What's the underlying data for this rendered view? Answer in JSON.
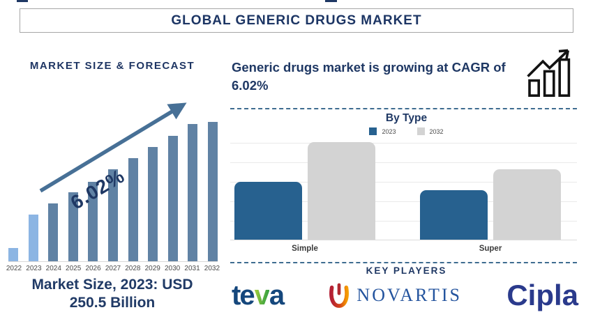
{
  "page": {
    "title": "GLOBAL GENERIC DRUGS MARKET"
  },
  "left_panel": {
    "heading": "MARKET SIZE & FORECAST",
    "growth_label": "6.02%",
    "caption": "Market Size, 2023: USD 250.5 Billion"
  },
  "right_panel": {
    "headline": "Generic drugs market is growing at CAGR of 6.02%",
    "by_type": {
      "title": "By Type"
    },
    "key_players": {
      "title": "KEY PLAYERS",
      "teva": {
        "prefix": "te",
        "leaf": "v",
        "suffix": "a"
      },
      "novartis": "NOVARTIS",
      "cipla": "Cipla"
    }
  },
  "colors": {
    "navy_text": "#1F3864",
    "forecast_bar": "#6082A4",
    "forecast_bar_highlight": "#8CB5E3",
    "arrow": "#477096",
    "bytype_2023": "#27618F",
    "bytype_2032": "#D3D3D3",
    "dashed_separator": "#3E6C90"
  },
  "chart_data": [
    {
      "type": "bar",
      "title": "MARKET SIZE & FORECAST",
      "categories": [
        "2022",
        "2023",
        "2024",
        "2025",
        "2026",
        "2027",
        "2028",
        "2029",
        "2030",
        "2031",
        "2032"
      ],
      "bar_heights_pct": [
        9.5,
        33.5,
        41.5,
        49.5,
        57,
        66,
        74,
        82,
        90,
        98.5,
        100
      ],
      "bar_color": "#6082A4",
      "highlight_years": [
        "2022",
        "2023"
      ],
      "highlight_color": "#8CB5E3",
      "annotation": "6.02%",
      "labeled_value": {
        "year": "2023",
        "value": "USD 250.5 Billion"
      },
      "cagr_pct": 6.02,
      "xlabel": "",
      "ylabel": "",
      "grid": false
    },
    {
      "type": "bar",
      "title": "By Type",
      "categories": [
        "Simple",
        "Super"
      ],
      "series": [
        {
          "name": "2023",
          "values": [
            59,
            51
          ],
          "color": "#27618F"
        },
        {
          "name": "2032",
          "values": [
            100,
            72
          ],
          "color": "#D3D3D3"
        }
      ],
      "ylim": [
        0,
        100
      ],
      "grid": true,
      "legend_position": "top"
    }
  ]
}
